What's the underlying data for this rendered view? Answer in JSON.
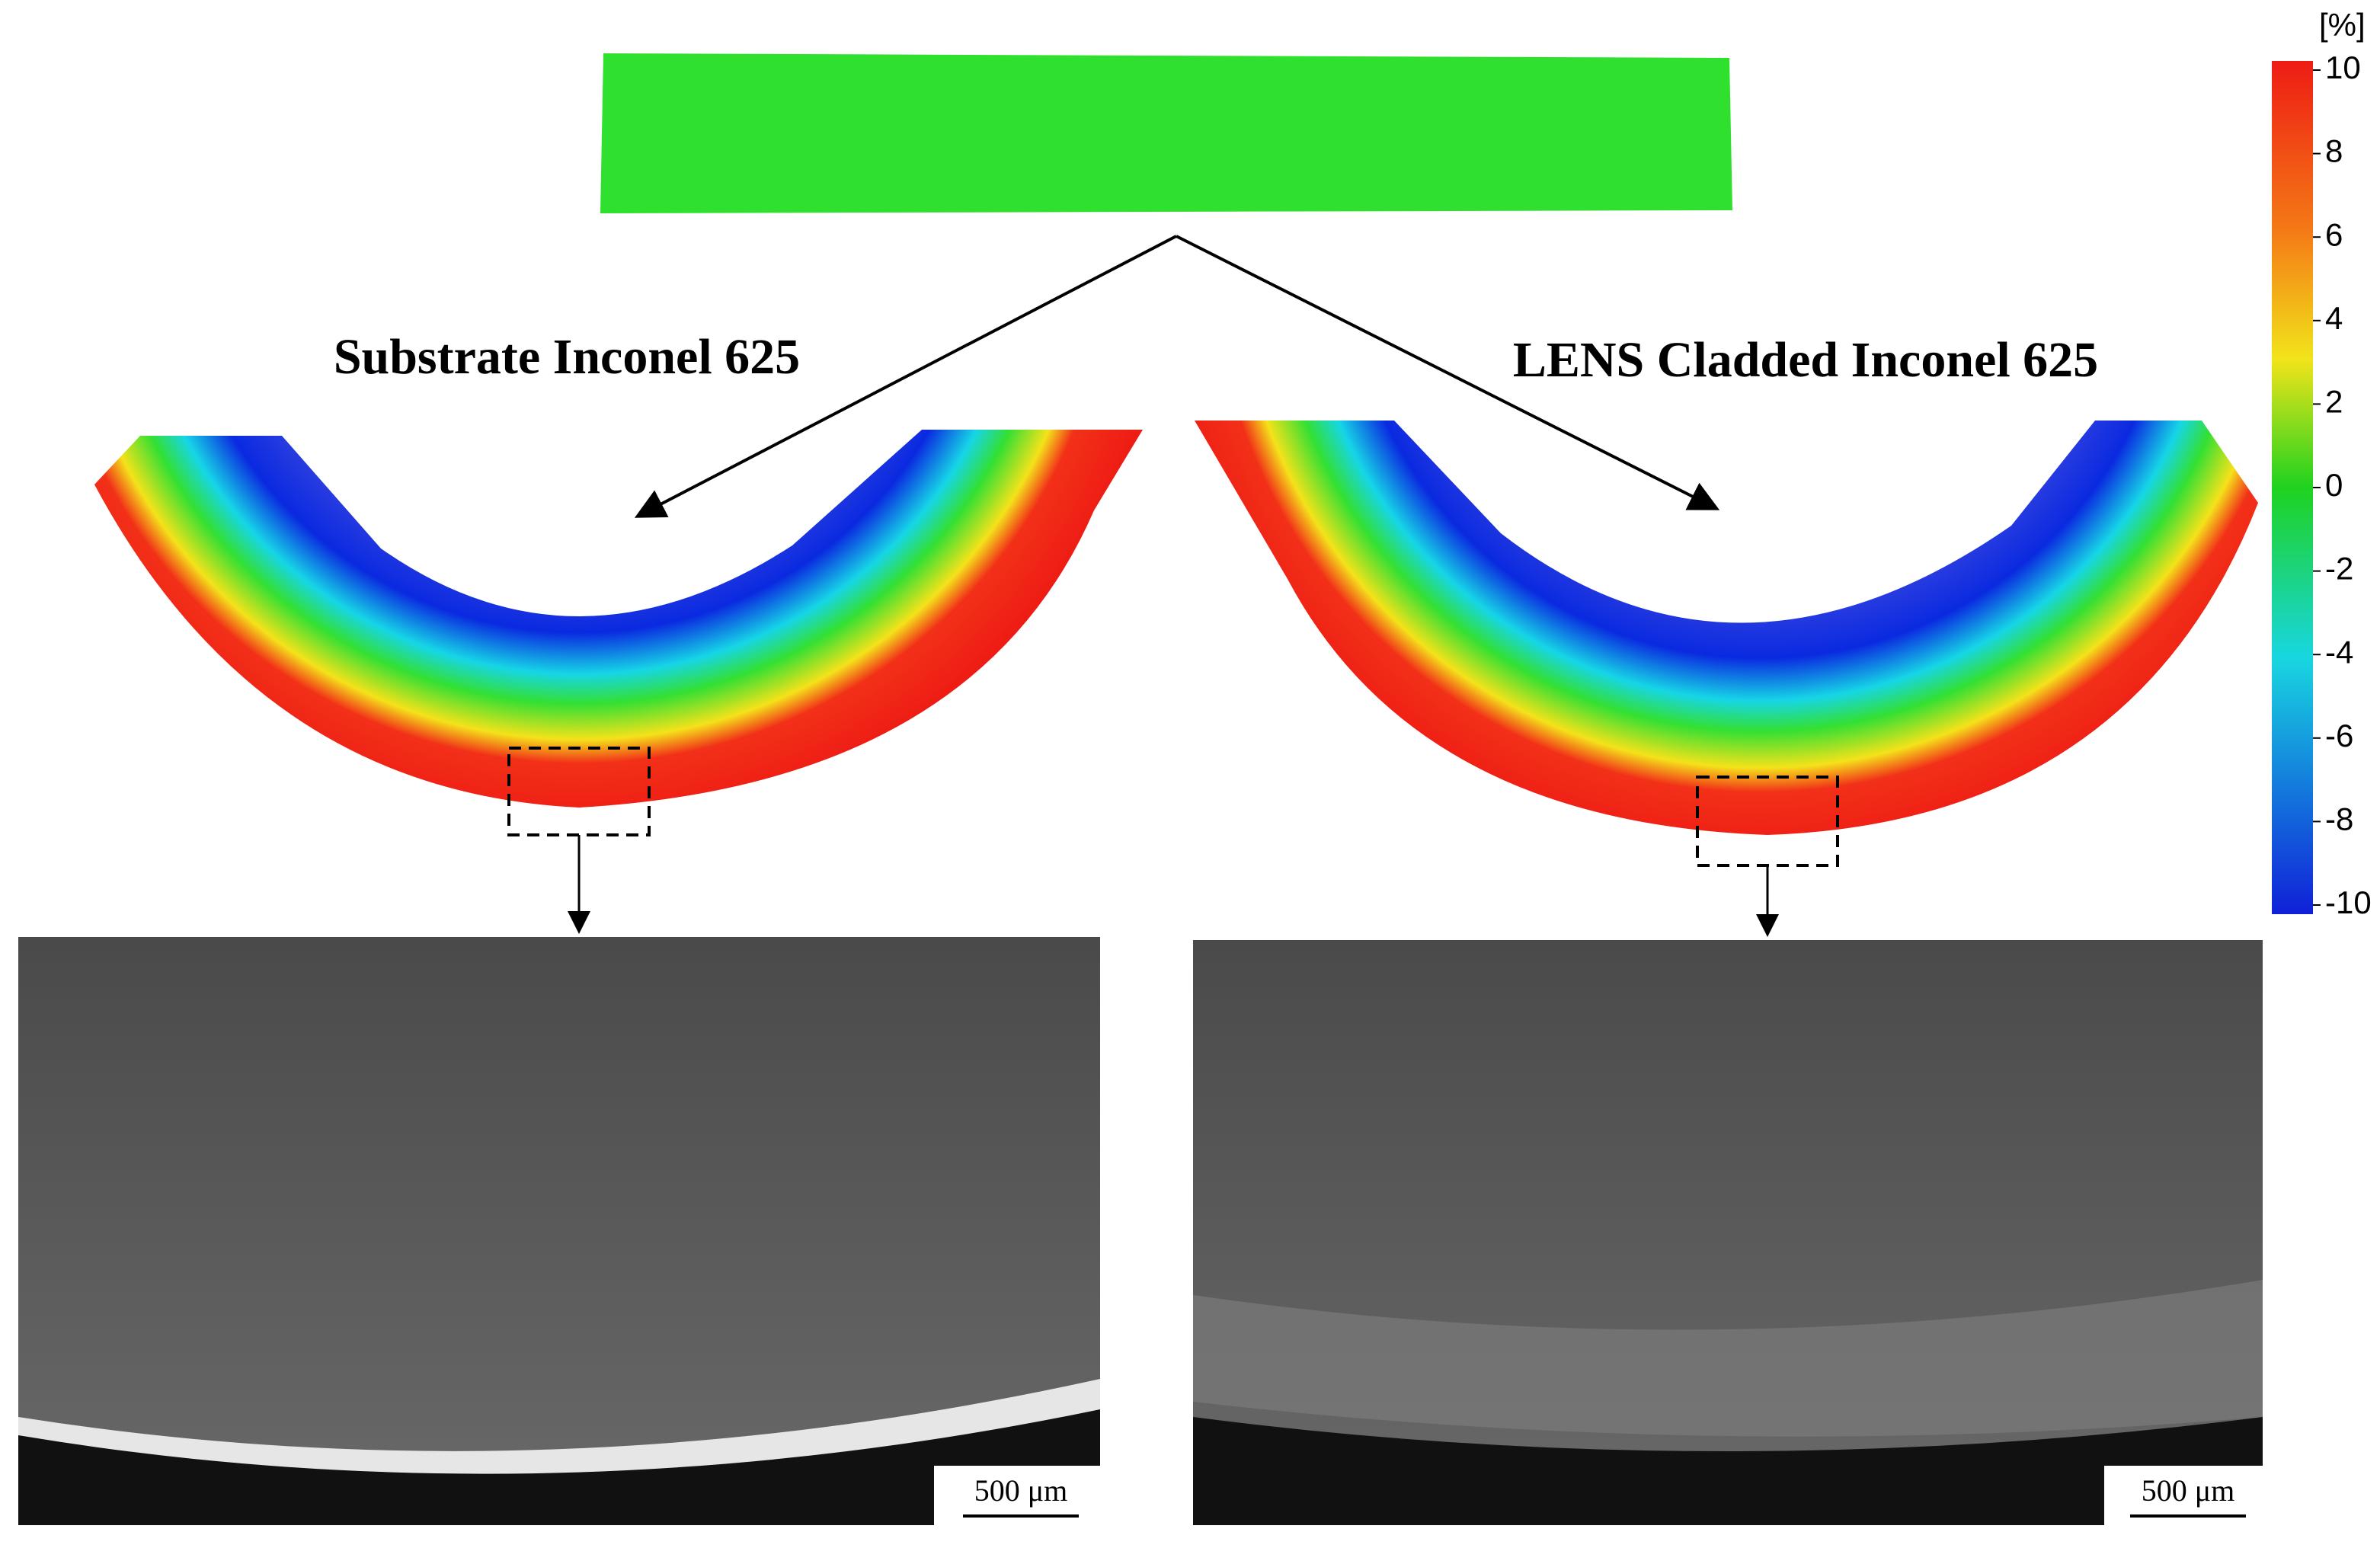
{
  "labels": {
    "left": "Substrate Inconel 625",
    "right": "LENS Cladded Inconel 625"
  },
  "colorbar": {
    "unit": "[%]",
    "lim": [
      -10,
      10
    ],
    "ticks": [
      10,
      8,
      6,
      4,
      2,
      0,
      -2,
      -4,
      -6,
      -8,
      -10
    ]
  },
  "scale_bars": [
    "500 μm",
    "500 μm"
  ]
}
